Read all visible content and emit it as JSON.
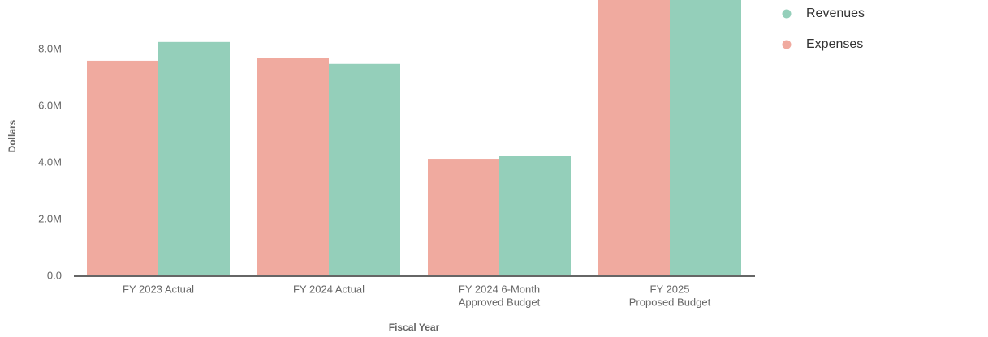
{
  "chart_data": {
    "type": "bar",
    "x_label": "Fiscal Year",
    "y_label": "Dollars",
    "categories": [
      [
        "FY 2023 Actual"
      ],
      [
        "FY 2024 Actual"
      ],
      [
        "FY 2024 6-Month",
        "Approved Budget"
      ],
      [
        "FY 2025",
        "Proposed Budget"
      ]
    ],
    "series": [
      {
        "name": "Expenses",
        "color": "#f0aa9f",
        "values": [
          7600000,
          7710000,
          4140000,
          10200000
        ]
      },
      {
        "name": "Revenues",
        "color": "#94cfba",
        "values": [
          8260000,
          7490000,
          4230000,
          10400000
        ]
      }
    ],
    "legend_order": [
      1,
      0
    ],
    "ylim": [
      0,
      9740000
    ],
    "yticks": [
      {
        "value": 0,
        "label": "0.0"
      },
      {
        "value": 2000000,
        "label": "2.0M"
      },
      {
        "value": 4000000,
        "label": "4.0M"
      },
      {
        "value": 6000000,
        "label": "6.0M"
      },
      {
        "value": 8000000,
        "label": "8.0M"
      }
    ]
  }
}
